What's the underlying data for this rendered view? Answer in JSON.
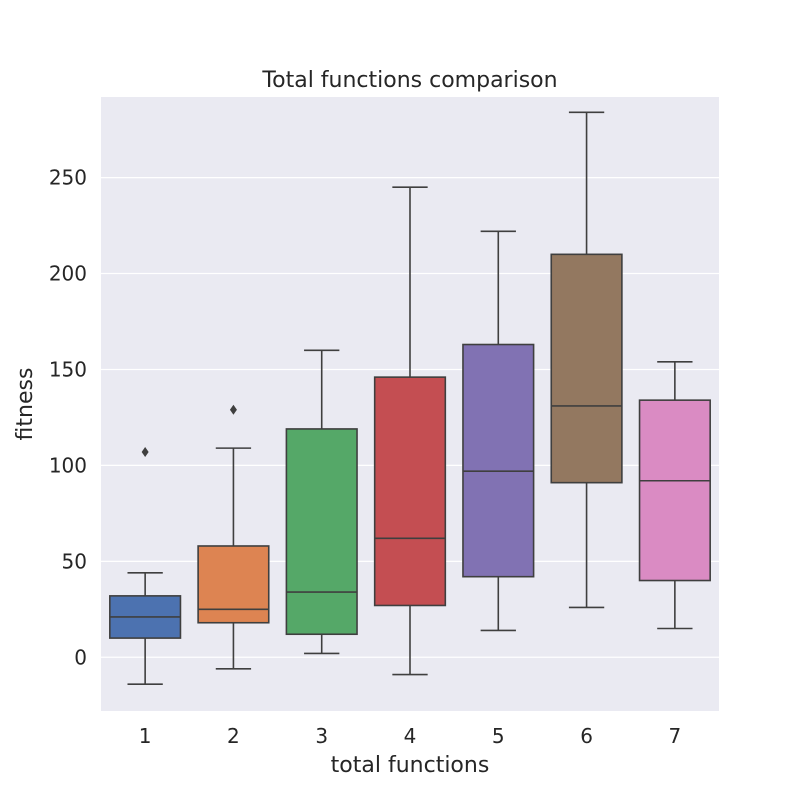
{
  "chart_data": {
    "type": "box",
    "title": "Total functions comparison",
    "xlabel": "total functions",
    "ylabel": "fitness",
    "ylim": [
      -28,
      292
    ],
    "yticks": [
      0,
      50,
      100,
      150,
      200,
      250
    ],
    "grid": true,
    "background": "#eaeaf2",
    "categories": [
      "1",
      "2",
      "3",
      "4",
      "5",
      "6",
      "7"
    ],
    "boxes": [
      {
        "category": "1",
        "whisker_low": -14,
        "q1": 10,
        "median": 21,
        "q3": 32,
        "whisker_high": 44,
        "outliers": [
          107
        ],
        "color": "#4c72b0"
      },
      {
        "category": "2",
        "whisker_low": -6,
        "q1": 18,
        "median": 25,
        "q3": 58,
        "whisker_high": 109,
        "outliers": [
          129
        ],
        "color": "#dd8452"
      },
      {
        "category": "3",
        "whisker_low": 2,
        "q1": 12,
        "median": 34,
        "q3": 119,
        "whisker_high": 160,
        "outliers": [],
        "color": "#55a868"
      },
      {
        "category": "4",
        "whisker_low": -9,
        "q1": 27,
        "median": 62,
        "q3": 146,
        "whisker_high": 245,
        "outliers": [],
        "color": "#c44e52"
      },
      {
        "category": "5",
        "whisker_low": 14,
        "q1": 42,
        "median": 97,
        "q3": 163,
        "whisker_high": 222,
        "outliers": [],
        "color": "#8172b3"
      },
      {
        "category": "6",
        "whisker_low": 26,
        "q1": 91,
        "median": 131,
        "q3": 210,
        "whisker_high": 284,
        "outliers": [],
        "color": "#937860"
      },
      {
        "category": "7",
        "whisker_low": 15,
        "q1": 40,
        "median": 92,
        "q3": 134,
        "whisker_high": 154,
        "outliers": [],
        "color": "#da8bc3"
      }
    ]
  }
}
